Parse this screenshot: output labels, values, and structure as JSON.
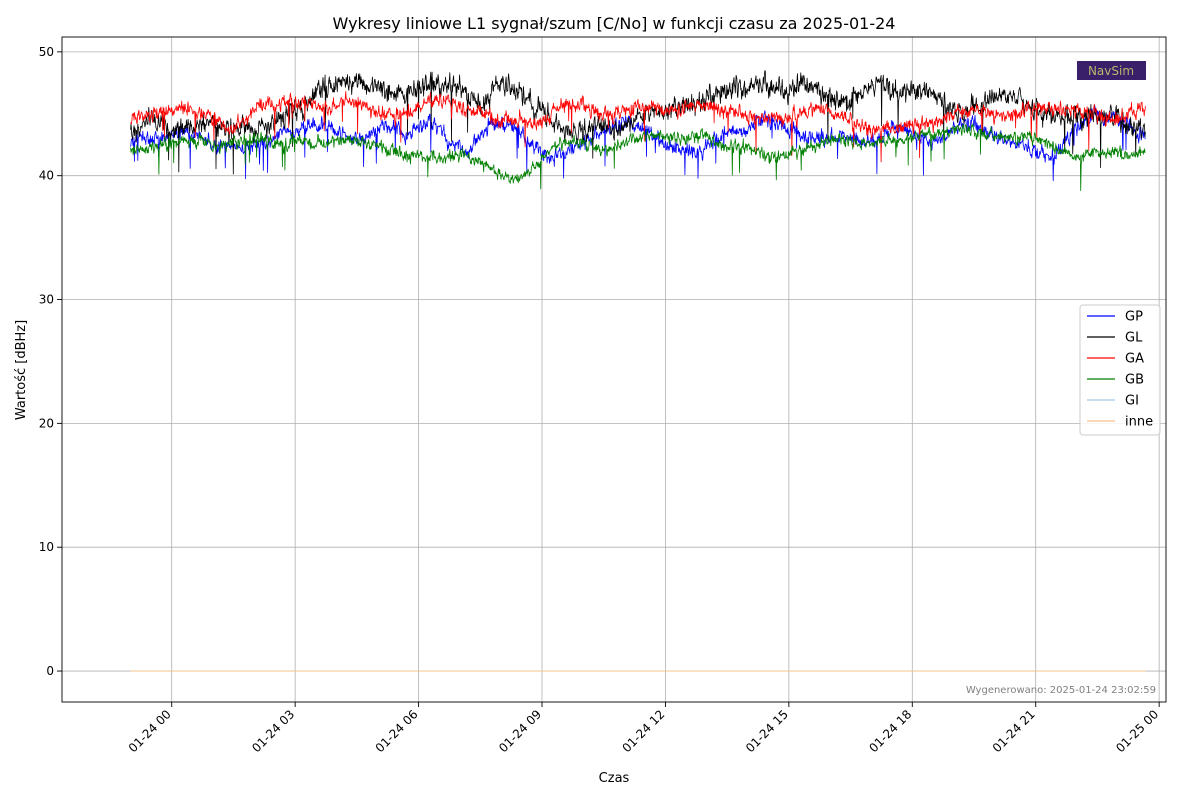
{
  "chart_data": {
    "type": "line",
    "title": "Wykresy liniowe L1 sygnał/szum [C/No] w funkcji czasu za 2025-01-24",
    "xlabel": "Czas",
    "ylabel": "Wartość [dBHz]",
    "x_start": "01-23 23:00",
    "x_end": "01-24 23:40",
    "xlim": [
      "01-23 21:20",
      "01-25 00:10"
    ],
    "ylim": [
      -2.5,
      51.2
    ],
    "y_ticks": [
      0,
      10,
      20,
      30,
      40,
      50
    ],
    "x_ticks": [
      "01-24 00",
      "01-24 03",
      "01-24 06",
      "01-24 09",
      "01-24 12",
      "01-24 15",
      "01-24 18",
      "01-24 21",
      "01-25 00"
    ],
    "grid": true,
    "legend_position": "center-right",
    "series": [
      {
        "name": "GP",
        "color": "#0000ff",
        "line_width": 0.8,
        "noise": 0.7,
        "values": [
          42.5,
          43.4,
          42.9,
          43.0,
          43.2,
          43.6,
          43.4,
          43.1,
          42.6,
          42.4,
          42.5,
          42.2,
          42.4,
          42.8,
          43.2,
          43.8,
          43.6,
          43.8,
          44.1,
          43.9,
          43.6,
          43.1,
          42.9,
          43.2,
          43.7,
          44.0,
          43.6,
          43.3,
          43.8,
          44.3,
          43.9,
          42.8,
          42.3,
          42.0,
          43.1,
          44.1,
          44.3,
          44.2,
          43.6,
          42.6,
          41.8,
          41.5,
          41.7,
          42.2,
          42.6,
          42.9,
          43.7,
          44.0,
          44.4,
          44.2,
          43.8,
          43.1,
          42.6,
          42.2,
          42.0,
          41.9,
          42.4,
          42.9,
          43.3,
          43.4,
          43.7,
          44.4,
          44.7,
          44.3,
          43.9,
          43.4,
          43.1,
          42.9,
          43.2,
          43.4,
          43.1,
          43.0,
          42.6,
          42.9,
          43.6,
          43.9,
          43.7,
          43.2,
          42.7,
          42.9,
          43.7,
          44.1,
          44.2,
          43.8,
          43.4,
          43.0,
          42.8,
          42.4,
          42.0,
          41.7,
          41.5,
          42.5,
          43.6,
          44.3,
          44.7,
          44.6,
          44.5,
          44.4,
          43.6,
          43.2
        ]
      },
      {
        "name": "GL",
        "color": "#000000",
        "line_width": 0.8,
        "noise": 1.0,
        "values": [
          43.2,
          44.2,
          44.6,
          44.4,
          43.5,
          43.6,
          44.0,
          44.1,
          43.9,
          43.6,
          43.8,
          43.9,
          43.7,
          44.0,
          44.6,
          45.0,
          45.3,
          45.5,
          46.5,
          47.2,
          47.6,
          47.8,
          47.8,
          47.4,
          47.0,
          46.6,
          46.4,
          46.7,
          47.1,
          47.3,
          47.4,
          47.3,
          47.2,
          46.4,
          46.0,
          46.5,
          47.2,
          47.3,
          46.8,
          46.1,
          45.6,
          44.7,
          43.8,
          43.4,
          43.6,
          43.9,
          44.0,
          43.9,
          44.1,
          44.5,
          44.8,
          45.0,
          45.2,
          45.6,
          45.8,
          45.7,
          46.3,
          46.7,
          46.9,
          47.0,
          47.1,
          47.3,
          47.4,
          47.1,
          46.9,
          47.2,
          47.4,
          47.0,
          46.4,
          46.1,
          45.9,
          46.5,
          47.1,
          47.3,
          47.0,
          46.7,
          46.9,
          47.0,
          46.8,
          46.2,
          45.5,
          45.1,
          45.4,
          45.8,
          46.3,
          46.6,
          46.5,
          46.1,
          45.5,
          45.2,
          44.9,
          44.9,
          44.8,
          44.6,
          44.7,
          44.9,
          44.8,
          44.3,
          43.8,
          43.6
        ]
      },
      {
        "name": "GA",
        "color": "#ff0000",
        "line_width": 0.8,
        "noise": 0.7,
        "values": [
          44.5,
          44.8,
          45.0,
          45.2,
          45.3,
          45.4,
          45.2,
          45.3,
          44.5,
          44.0,
          43.9,
          44.5,
          45.4,
          45.6,
          45.7,
          45.9,
          46.0,
          45.9,
          45.7,
          45.5,
          45.7,
          46.0,
          45.9,
          45.5,
          45.1,
          44.8,
          44.9,
          45.1,
          45.4,
          45.8,
          46.0,
          46.1,
          45.7,
          45.2,
          45.0,
          44.7,
          44.5,
          44.6,
          44.6,
          44.2,
          44.0,
          45.0,
          45.5,
          45.6,
          45.7,
          45.4,
          45.0,
          44.9,
          45.2,
          45.4,
          45.5,
          45.6,
          45.3,
          45.1,
          45.5,
          45.7,
          45.8,
          45.6,
          45.3,
          45.1,
          44.9,
          44.7,
          44.8,
          44.8,
          44.6,
          44.9,
          45.2,
          45.5,
          45.2,
          44.8,
          44.4,
          44.0,
          43.8,
          43.9,
          43.8,
          43.9,
          43.9,
          44.0,
          44.2,
          44.4,
          44.8,
          45.2,
          45.4,
          45.3,
          45.0,
          44.8,
          44.9,
          45.3,
          45.5,
          45.5,
          45.4,
          45.5,
          45.3,
          45.2,
          45.0,
          44.6,
          44.7,
          45.0,
          45.4,
          45.7
        ]
      },
      {
        "name": "GB",
        "color": "#008000",
        "line_width": 0.8,
        "noise": 0.6,
        "values": [
          42.0,
          42.1,
          42.3,
          42.5,
          42.6,
          42.6,
          42.7,
          42.8,
          42.6,
          42.4,
          42.5,
          42.9,
          43.0,
          42.9,
          42.6,
          42.5,
          42.8,
          42.9,
          42.6,
          42.7,
          42.9,
          42.9,
          42.8,
          42.7,
          42.5,
          42.2,
          41.9,
          41.6,
          41.6,
          41.5,
          41.6,
          41.5,
          41.8,
          41.6,
          41.2,
          40.6,
          40.0,
          39.6,
          39.8,
          40.4,
          41.3,
          42.3,
          42.7,
          42.8,
          42.6,
          42.4,
          42.0,
          42.2,
          42.7,
          42.9,
          43.2,
          43.3,
          43.2,
          43.1,
          43.0,
          43.3,
          43.4,
          42.9,
          42.4,
          42.3,
          42.2,
          41.9,
          41.5,
          41.4,
          41.6,
          41.8,
          42.2,
          42.6,
          42.9,
          43.0,
          42.9,
          42.7,
          42.6,
          42.8,
          43.0,
          42.8,
          42.9,
          43.2,
          43.3,
          43.5,
          43.7,
          43.6,
          43.6,
          43.4,
          43.2,
          43.2,
          43.1,
          43.2,
          43.1,
          42.9,
          42.3,
          41.8,
          41.6,
          41.7,
          41.9,
          41.8,
          41.8,
          41.7,
          41.8,
          41.9
        ]
      },
      {
        "name": "GI",
        "color": "#a6c8e8",
        "line_width": 1.0,
        "noise": 0,
        "values": [
          0,
          0
        ]
      },
      {
        "name": "inne",
        "color": "#f5c08c",
        "line_width": 1.0,
        "noise": 0,
        "values": [
          0,
          0
        ]
      }
    ]
  },
  "annotation": {
    "generated": "Wygenerowano: 2025-01-24 23:02:59",
    "generated_color": "#808080"
  },
  "logo": {
    "text": "NavSim",
    "background": "#3a1f6b",
    "text_color": "#b9b66b"
  }
}
